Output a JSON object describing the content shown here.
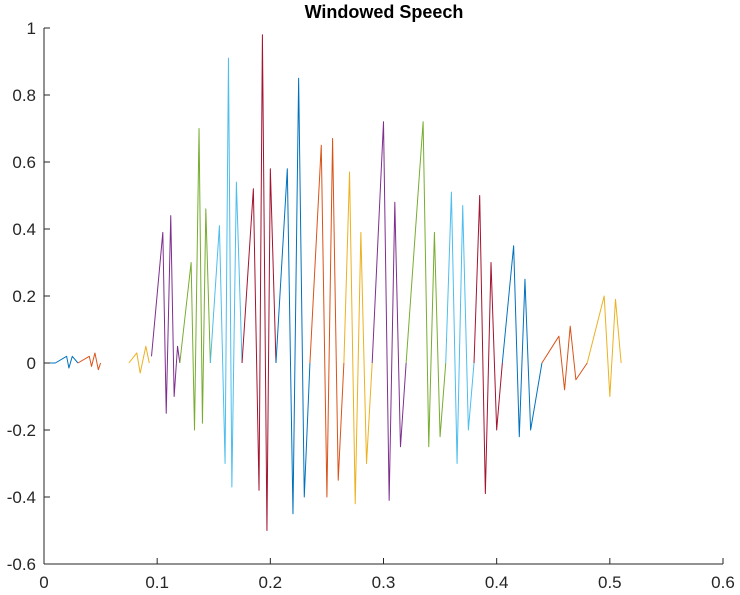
{
  "chart_data": {
    "type": "line",
    "title": "Windowed Speech",
    "xlabel": "",
    "ylabel": "",
    "xlim": [
      0,
      0.6
    ],
    "ylim": [
      -0.6,
      1
    ],
    "xticks": [
      0,
      0.1,
      0.2,
      0.3,
      0.4,
      0.5,
      0.6
    ],
    "yticks": [
      -0.6,
      -0.4,
      -0.2,
      0,
      0.2,
      0.4,
      0.6,
      0.8,
      1
    ],
    "xtick_labels": [
      "0",
      "0.1",
      "0.2",
      "0.3",
      "0.4",
      "0.5",
      "0.6"
    ],
    "ytick_labels": [
      "-0.6",
      "-0.4",
      "-0.2",
      "0",
      "0.2",
      "0.4",
      "0.6",
      "0.8",
      "1"
    ],
    "grid": false,
    "legend": "none",
    "color_order": [
      "#0072BD",
      "#D95319",
      "#EDB120",
      "#7E2F8E",
      "#77AC30",
      "#4DBEEE",
      "#A2142F"
    ],
    "series": [
      {
        "color": "#0072BD",
        "x": [
          0.0,
          0.01,
          0.02,
          0.022,
          0.025,
          0.03
        ],
        "y": [
          0.0,
          0.0,
          0.02,
          -0.015,
          0.02,
          0.0
        ]
      },
      {
        "color": "#D95319",
        "x": [
          0.03,
          0.04,
          0.042,
          0.045,
          0.048,
          0.05
        ],
        "y": [
          0.0,
          0.02,
          -0.01,
          0.03,
          -0.02,
          0.0
        ]
      },
      {
        "color": "#EDB120",
        "x": [
          0.075,
          0.082,
          0.085,
          0.09,
          0.093
        ],
        "y": [
          0.0,
          0.03,
          -0.03,
          0.05,
          0.0
        ]
      },
      {
        "color": "#7E2F8E",
        "x": [
          0.095,
          0.105,
          0.108,
          0.112,
          0.115,
          0.118,
          0.12
        ],
        "y": [
          0.02,
          0.39,
          -0.15,
          0.44,
          -0.1,
          0.05,
          0.0
        ]
      },
      {
        "color": "#77AC30",
        "x": [
          0.12,
          0.13,
          0.133,
          0.137,
          0.14,
          0.143,
          0.147
        ],
        "y": [
          0.0,
          0.3,
          -0.2,
          0.7,
          -0.18,
          0.46,
          0.0
        ]
      },
      {
        "color": "#4DBEEE",
        "x": [
          0.147,
          0.155,
          0.16,
          0.163,
          0.166,
          0.17,
          0.175
        ],
        "y": [
          0.0,
          0.41,
          -0.3,
          0.91,
          -0.37,
          0.54,
          0.0
        ]
      },
      {
        "color": "#A2142F",
        "x": [
          0.175,
          0.185,
          0.19,
          0.193,
          0.197,
          0.2,
          0.205
        ],
        "y": [
          0.0,
          0.52,
          -0.38,
          0.98,
          -0.5,
          0.58,
          0.0
        ]
      },
      {
        "color": "#0072BD",
        "x": [
          0.205,
          0.215,
          0.22,
          0.225,
          0.23,
          0.235
        ],
        "y": [
          0.0,
          0.58,
          -0.45,
          0.85,
          -0.4,
          0.0
        ]
      },
      {
        "color": "#D95319",
        "x": [
          0.235,
          0.245,
          0.25,
          0.255,
          0.26,
          0.265
        ],
        "y": [
          0.0,
          0.65,
          -0.4,
          0.67,
          -0.35,
          0.0
        ]
      },
      {
        "color": "#EDB120",
        "x": [
          0.265,
          0.27,
          0.275,
          0.28,
          0.285,
          0.29
        ],
        "y": [
          0.0,
          0.57,
          -0.42,
          0.39,
          -0.3,
          0.0
        ]
      },
      {
        "color": "#7E2F8E",
        "x": [
          0.29,
          0.3,
          0.305,
          0.31,
          0.315,
          0.32
        ],
        "y": [
          0.0,
          0.72,
          -0.41,
          0.48,
          -0.25,
          0.0
        ]
      },
      {
        "color": "#77AC30",
        "x": [
          0.32,
          0.335,
          0.34,
          0.345,
          0.35,
          0.355
        ],
        "y": [
          0.0,
          0.72,
          -0.25,
          0.39,
          -0.22,
          0.0
        ]
      },
      {
        "color": "#4DBEEE",
        "x": [
          0.355,
          0.36,
          0.365,
          0.37,
          0.375,
          0.38
        ],
        "y": [
          0.0,
          0.51,
          -0.3,
          0.47,
          -0.2,
          0.0
        ]
      },
      {
        "color": "#A2142F",
        "x": [
          0.38,
          0.385,
          0.39,
          0.395,
          0.4,
          0.405
        ],
        "y": [
          0.0,
          0.5,
          -0.39,
          0.3,
          -0.2,
          0.0
        ]
      },
      {
        "color": "#0072BD",
        "x": [
          0.405,
          0.415,
          0.42,
          0.425,
          0.43,
          0.44
        ],
        "y": [
          0.0,
          0.35,
          -0.22,
          0.25,
          -0.2,
          0.0
        ]
      },
      {
        "color": "#D95319",
        "x": [
          0.44,
          0.455,
          0.46,
          0.465,
          0.47,
          0.48
        ],
        "y": [
          0.0,
          0.08,
          -0.08,
          0.11,
          -0.05,
          0.0
        ]
      },
      {
        "color": "#EDB120",
        "x": [
          0.48,
          0.495,
          0.5,
          0.505,
          0.51
        ],
        "y": [
          0.0,
          0.2,
          -0.1,
          0.19,
          0.0
        ]
      }
    ]
  }
}
